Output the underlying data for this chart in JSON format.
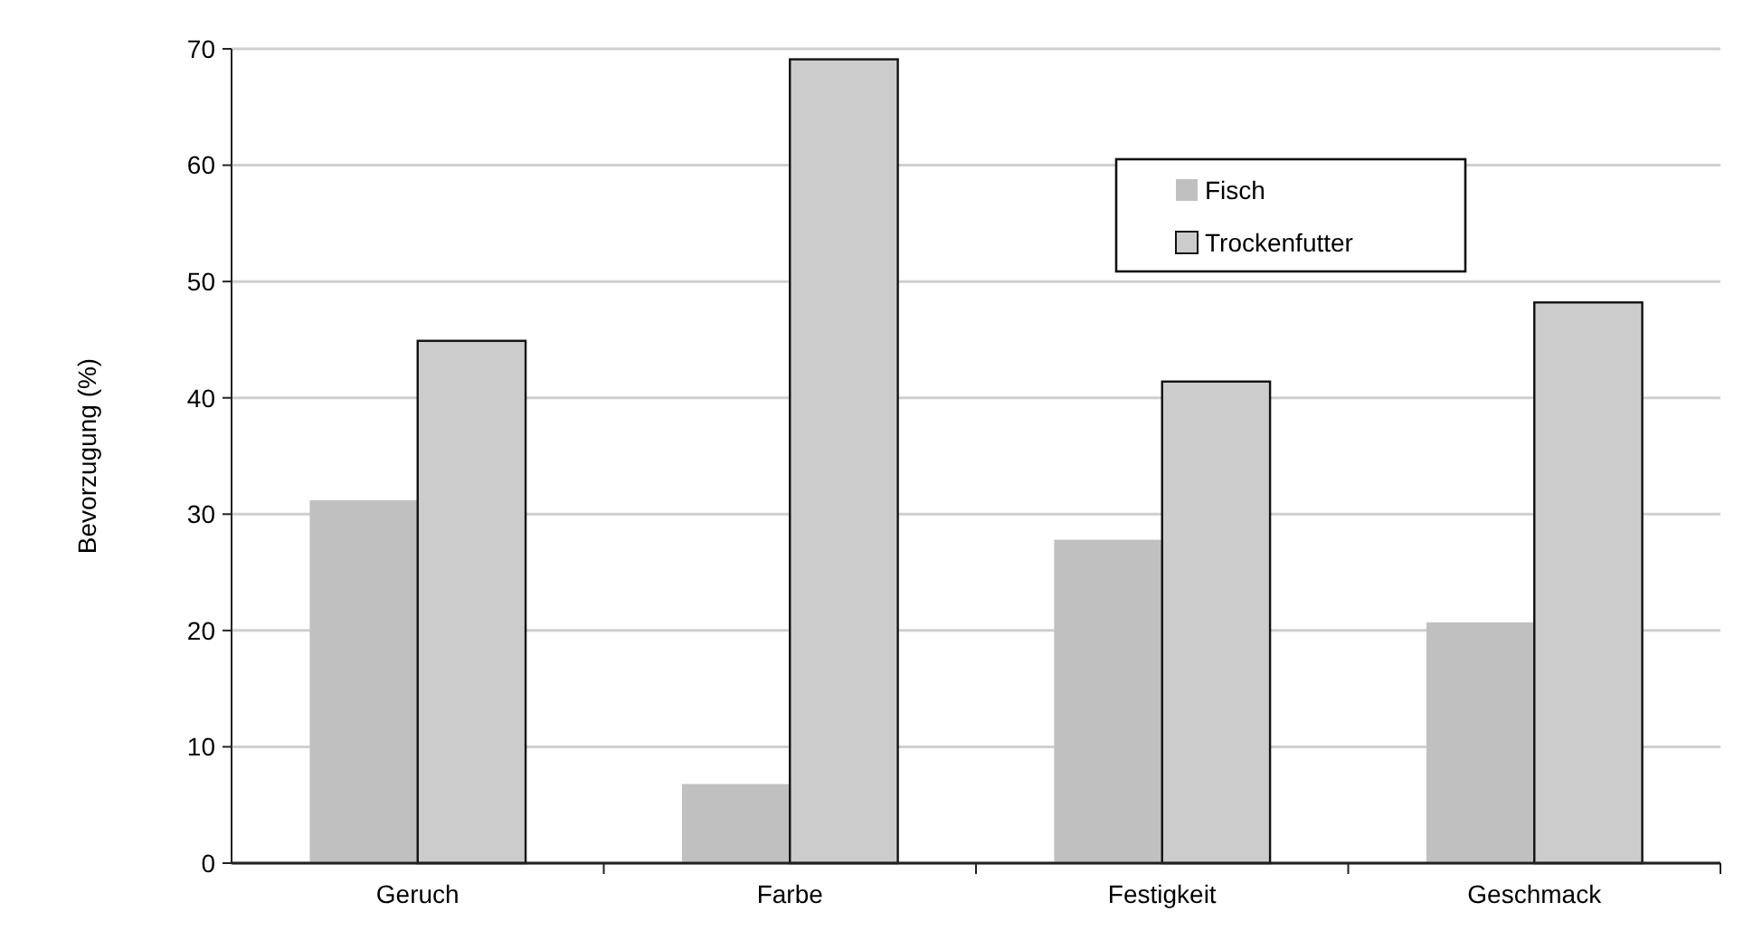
{
  "chart_data": {
    "type": "bar",
    "ylabel": "Bevorzugung (%)",
    "categories": [
      "Geruch",
      "Farbe",
      "Festigkeit",
      "Geschmack"
    ],
    "series": [
      {
        "name": "Fisch",
        "color": "#c0c0c0",
        "values": [
          31.2,
          6.8,
          27.8,
          20.7
        ]
      },
      {
        "name": "Trockenfutter",
        "color": "#cccccc",
        "values": [
          44.9,
          69.1,
          41.4,
          48.2
        ]
      }
    ],
    "ylim": [
      0,
      70
    ],
    "yticks": [
      0,
      10,
      20,
      30,
      40,
      50,
      60,
      70
    ],
    "grid": "y",
    "legend": "top right"
  }
}
